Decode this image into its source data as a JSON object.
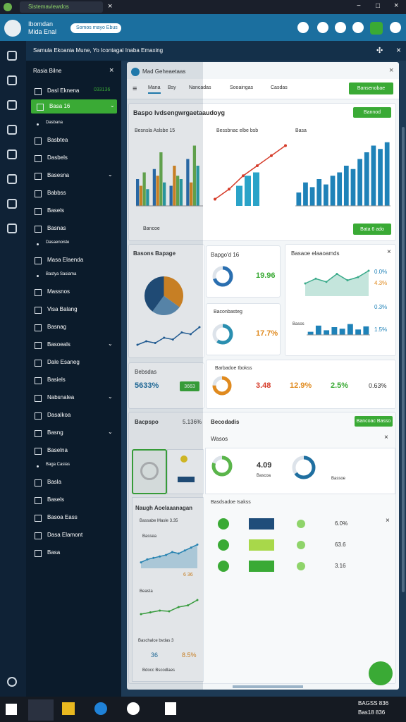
{
  "window": {
    "tab_title": "Sistemaviewdos"
  },
  "app_header": {
    "title_line1": "Ibomdan",
    "title_line2": "Mida Enal",
    "search": "Somos mayo Ebus"
  },
  "breadcrumb": "Samula Ekoania Mune, Yo Icontagal Inaba Emaxing",
  "sidebar": {
    "title": "Rasia Bilne",
    "items": [
      {
        "label": "Dasl Eknena",
        "badge": "033136"
      },
      {
        "label": "Basa 16",
        "active": true
      },
      {
        "label": "Dasbana",
        "sub": true
      },
      {
        "label": "Basbtea"
      },
      {
        "label": "Dasbels"
      },
      {
        "label": "Basesna",
        "chevron": true
      },
      {
        "label": "Babbss"
      },
      {
        "label": "Basels"
      },
      {
        "label": "Basnas"
      },
      {
        "label": "Dasaenoiste",
        "sub": true
      },
      {
        "label": "Masa Elaenda"
      },
      {
        "label": "Bastya Sasiama",
        "sub": true
      },
      {
        "label": "Massnos"
      },
      {
        "label": "Visa Balang"
      },
      {
        "label": "Basnag"
      },
      {
        "label": "Basoeals",
        "chevron": true
      },
      {
        "label": "Dale Esaneg"
      },
      {
        "label": "Basiels"
      },
      {
        "label": "Nabsnalea",
        "chevron": true
      },
      {
        "label": "Dasalkoa"
      },
      {
        "label": "Basng",
        "chevron": true
      },
      {
        "label": "Baselna"
      },
      {
        "label": "Baga Casias",
        "sub": true
      },
      {
        "label": "Basla"
      },
      {
        "label": "Basels"
      },
      {
        "label": "Basoa Eass"
      },
      {
        "label": "Dasa Elamont"
      },
      {
        "label": "Basa"
      }
    ]
  },
  "main": {
    "title": "Mad Geheaetaas",
    "tabs": [
      "Mana",
      "Bsy",
      "Nancadas",
      "Sooaingas",
      "Casdas"
    ],
    "action_button": "Bansenobae",
    "overview": {
      "title": "Baspo Ivdsengwrgaetaaudoyg",
      "button": "Bannod",
      "chart1_label": "Besnsla Aslsbe 15",
      "chart2_label": "Bessbnac elbe bsb",
      "chart3_label": "Basa",
      "footer_label": "Bancoe",
      "footer_button": "Bata 6 ado"
    },
    "pie_card": {
      "title": "Basons Bapage"
    },
    "stat1": {
      "label": "Bapgo'd 16",
      "value": "19.96"
    },
    "stat2": {
      "label": "Baconbasteg",
      "value": "17.7%"
    },
    "trend_card": {
      "title": "Basaoe elaaoamds",
      "values": [
        "0.0%",
        "4.3%",
        "0.3%"
      ],
      "bars_label": "Basos",
      "bars_value": "1.5%"
    },
    "summary": {
      "title": "Bebsdas",
      "value": "5633%",
      "button": "3663"
    },
    "breakdown": {
      "title": "Barbadoe Ibokss",
      "values": [
        "3.48",
        "12.9%",
        "2.5%",
        "0.63%"
      ]
    },
    "section": {
      "title": "Bacpspo",
      "value": "5.136%",
      "right_title": "Becodadis",
      "button": "Bancoac Basso",
      "sub_title": "Wasos",
      "metric": "4.09",
      "metric_label": "Bascoa",
      "metric2_label": "Bassoe"
    },
    "list": {
      "title": "Basdsadoe Isakss",
      "values": [
        "6.0%",
        "63.6",
        "3.16"
      ]
    },
    "side_card": {
      "title": "Naugh Aoelaaanagan",
      "legend": "Bassabe Masle 3.35",
      "chart_label": "Bassea",
      "chart_value": "6 36",
      "chart2_label": "Beasta",
      "bottom_title": "Baschalce bvdas 3",
      "bottom_value1": "36",
      "bottom_value2": "8.5%",
      "bottom_note": "Bdocc Bscodlaes"
    },
    "charts": [
      {
        "type": "bar",
        "ylim": [
          0,
          100
        ],
        "series": [
          {
            "color": "#2a6fb0",
            "values": [
              40,
              55,
              30,
              70
            ]
          },
          {
            "color": "#e08a1e",
            "values": [
              30,
              45,
              60,
              35
            ]
          },
          {
            "color": "#6ab04c",
            "values": [
              50,
              80,
              45,
              90
            ]
          },
          {
            "color": "#2aa3a8",
            "values": [
              25,
              35,
              40,
              60
            ]
          }
        ]
      },
      {
        "type": "combo",
        "ylim": [
          0,
          100
        ],
        "bars": {
          "color": "#2aa3c8",
          "values": [
            30,
            45,
            50
          ]
        },
        "line": {
          "color": "#d63c2a",
          "values": [
            10,
            25,
            45,
            60,
            75,
            90
          ]
        }
      },
      {
        "type": "bar",
        "ylim": [
          0,
          100
        ],
        "color": "#1f82b8",
        "values": [
          20,
          35,
          28,
          40,
          32,
          45,
          50,
          60,
          55,
          70,
          80,
          90,
          85,
          95
        ]
      },
      {
        "type": "pie",
        "colors": [
          "#e08a1e",
          "#5f8fb5",
          "#1f4d7a"
        ],
        "values": [
          35,
          25,
          40
        ]
      },
      {
        "type": "line",
        "ylim": [
          0,
          70
        ],
        "color": "#1f5f9a",
        "values": [
          10,
          20,
          15,
          30,
          25,
          45,
          40,
          60
        ]
      },
      {
        "type": "donut",
        "color": "#2a6fb0",
        "value": 70
      },
      {
        "type": "donut",
        "color": "#2a8fb0",
        "value": 60
      },
      {
        "type": "area",
        "ylim": [
          0,
          100
        ],
        "color": "#3aaa8a",
        "values": [
          40,
          55,
          45,
          70,
          50,
          60,
          80
        ]
      },
      {
        "type": "bar",
        "ylim": [
          0,
          100
        ],
        "color": "#1f82b8",
        "values": [
          20,
          60,
          30,
          50,
          40,
          70,
          35,
          55
        ]
      },
      {
        "type": "donut",
        "color": "#e08a1e",
        "value": 75
      },
      {
        "type": "area",
        "ylim": [
          0,
          100
        ],
        "color": "#2a8fc0",
        "values": [
          20,
          30,
          35,
          40,
          45,
          55,
          50,
          60,
          70,
          80
        ]
      },
      {
        "type": "line",
        "ylim": [
          0,
          70
        ],
        "color": "#3aaa3a",
        "values": [
          20,
          25,
          30,
          28,
          40,
          45,
          60
        ]
      },
      {
        "type": "donut",
        "color": "#5ab54a",
        "value": 80
      },
      {
        "type": "donut",
        "color": "#1f6fa0",
        "value": 65
      }
    ]
  },
  "taskbar": {
    "clock1": "BAGSS 836",
    "clock2": "Bas18 836"
  }
}
